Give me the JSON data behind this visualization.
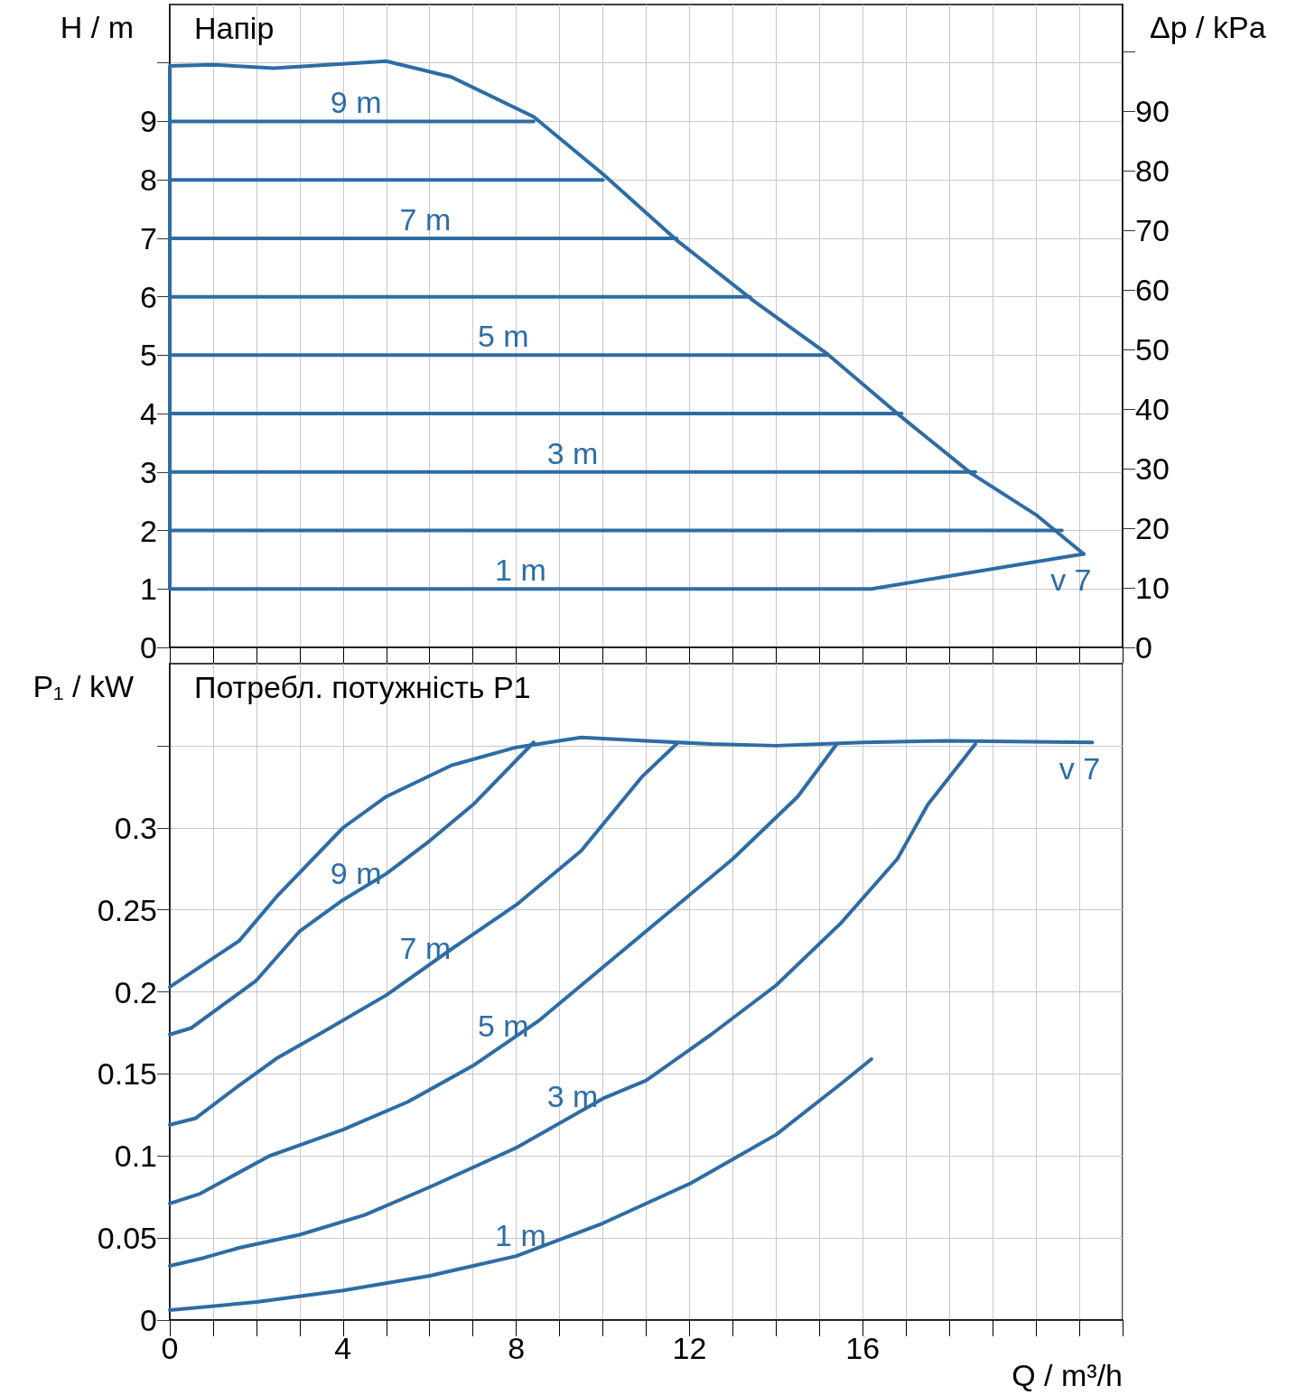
{
  "chart_data": [
    {
      "type": "line",
      "title": "Напір",
      "ylabel": "H / m",
      "y2label": "Δp / kPa",
      "xlim": [
        0,
        22
      ],
      "xticks": [
        0,
        {
          "value": 1,
          "label": null
        },
        {
          "value": 2,
          "label": null
        },
        {
          "value": 3,
          "label": null
        },
        4,
        {
          "value": 5,
          "label": null
        },
        {
          "value": 6,
          "label": null
        },
        {
          "value": 7,
          "label": null
        },
        8,
        {
          "value": 9,
          "label": null
        },
        {
          "value": 10,
          "label": null
        },
        {
          "value": 11,
          "label": null
        },
        12,
        {
          "value": 13,
          "label": null
        },
        {
          "value": 14,
          "label": null
        },
        {
          "value": 15,
          "label": null
        },
        16,
        {
          "value": 17,
          "label": null
        },
        {
          "value": 18,
          "label": null
        },
        {
          "value": 19,
          "label": null
        },
        {
          "value": 20,
          "label": null
        },
        {
          "value": 21,
          "label": null
        },
        {
          "value": 22,
          "label": null
        }
      ],
      "ylim": [
        0,
        11
      ],
      "yticks": [
        0,
        1,
        2,
        3,
        4,
        5,
        6,
        7,
        8,
        9,
        {
          "value": 10,
          "label": null
        }
      ],
      "y2lim": [
        0,
        107.9
      ],
      "y2ticks": [
        0,
        10,
        20,
        30,
        40,
        50,
        60,
        70,
        80,
        90,
        {
          "value": 100,
          "label": null
        }
      ],
      "tick_labels": "y",
      "grid": true,
      "legend": false,
      "series": [
        {
          "name": "v 7",
          "color": "#2e6ca4",
          "x": [
            0,
            0,
            1,
            2.4,
            5,
            6.5,
            8.4,
            10,
            11.7,
            13.5,
            15.2,
            16.8,
            18.5,
            20,
            21.1
          ],
          "values": [
            1,
            9.95,
            9.97,
            9.91,
            10.03,
            9.76,
            9.08,
            8.1,
            6.97,
            5.92,
            5.01,
            4.0,
            2.98,
            2.27,
            1.6
          ]
        },
        {
          "color": "#2e6ca4",
          "x": [
            0,
            16.2,
            21.1
          ],
          "values": [
            1,
            1,
            1.6
          ]
        },
        {
          "color": "#2e6ca4",
          "x": [
            0,
            8.4
          ],
          "values": [
            9,
            9
          ]
        },
        {
          "color": "#2e6ca4",
          "x": [
            0,
            10
          ],
          "values": [
            8,
            8
          ]
        },
        {
          "color": "#2e6ca4",
          "x": [
            0,
            11.7
          ],
          "values": [
            7,
            7
          ]
        },
        {
          "color": "#2e6ca4",
          "x": [
            0,
            13.4
          ],
          "values": [
            6,
            6
          ]
        },
        {
          "color": "#2e6ca4",
          "x": [
            0,
            15.2
          ],
          "values": [
            5,
            5
          ]
        },
        {
          "color": "#2e6ca4",
          "x": [
            0,
            16.9
          ],
          "values": [
            4,
            4
          ]
        },
        {
          "color": "#2e6ca4",
          "x": [
            0,
            18.6
          ],
          "values": [
            3,
            3
          ]
        },
        {
          "color": "#2e6ca4",
          "x": [
            0,
            20.6
          ],
          "values": [
            2,
            2
          ]
        }
      ],
      "annotations": [
        {
          "text": "9 m",
          "x": 4.3,
          "y": 9
        },
        {
          "text": "7 m",
          "x": 5.9,
          "y": 7
        },
        {
          "text": "5 m",
          "x": 7.7,
          "y": 5
        },
        {
          "text": "3 m",
          "x": 9.3,
          "y": 3
        },
        {
          "text": "1 m",
          "x": 8.1,
          "y": 1
        }
      ]
    },
    {
      "type": "line",
      "title": "Потребл. потужність P1",
      "ylabel": "P₁ / kW",
      "xlabel": "Q / m³/h",
      "xlim": [
        0,
        22
      ],
      "xticks": [
        0,
        {
          "value": 1,
          "label": null
        },
        {
          "value": 2,
          "label": null
        },
        {
          "value": 3,
          "label": null
        },
        4,
        {
          "value": 5,
          "label": null
        },
        {
          "value": 6,
          "label": null
        },
        {
          "value": 7,
          "label": null
        },
        8,
        {
          "value": 9,
          "label": null
        },
        {
          "value": 10,
          "label": null
        },
        {
          "value": 11,
          "label": null
        },
        12,
        {
          "value": 13,
          "label": null
        },
        {
          "value": 14,
          "label": null
        },
        {
          "value": 15,
          "label": null
        },
        16,
        {
          "value": 17,
          "label": null
        },
        {
          "value": 18,
          "label": null
        },
        {
          "value": 19,
          "label": null
        },
        {
          "value": 20,
          "label": null
        },
        {
          "value": 21,
          "label": null
        },
        {
          "value": 22,
          "label": null
        }
      ],
      "ylim": [
        0,
        0.4
      ],
      "yticks": [
        0,
        0.05,
        0.1,
        0.15,
        0.2,
        0.25,
        0.3,
        {
          "value": 0.35,
          "label": null
        }
      ],
      "grid": true,
      "legend": false,
      "series": [
        {
          "name": "v 7",
          "color": "#2e6ca4",
          "x": [
            0,
            1.6,
            2.5,
            4,
            5,
            6.5,
            8,
            9.5,
            11,
            12.5,
            14,
            16,
            18,
            21.3
          ],
          "values": [
            0.203,
            0.231,
            0.259,
            0.3,
            0.319,
            0.338,
            0.349,
            0.355,
            0.353,
            0.351,
            0.35,
            0.352,
            0.353,
            0.352
          ]
        },
        {
          "color": "#2e6ca4",
          "x": [
            0,
            0.5,
            2,
            3,
            4,
            5,
            6,
            7,
            8.4
          ],
          "values": [
            0.174,
            0.178,
            0.207,
            0.237,
            0.256,
            0.272,
            0.292,
            0.314,
            0.352
          ]
        },
        {
          "color": "#2e6ca4",
          "x": [
            0,
            0.6,
            1.5,
            2.5,
            3.5,
            5,
            6.5,
            8,
            9.5,
            10.9,
            11.7
          ],
          "values": [
            0.119,
            0.123,
            0.141,
            0.16,
            0.175,
            0.198,
            0.226,
            0.253,
            0.286,
            0.331,
            0.351
          ]
        },
        {
          "color": "#2e6ca4",
          "x": [
            0,
            0.7,
            2.3,
            4,
            5.5,
            7,
            8.5,
            10,
            11.5,
            13,
            14.5,
            15.4
          ],
          "values": [
            0.071,
            0.077,
            0.1,
            0.116,
            0.133,
            0.155,
            0.182,
            0.215,
            0.248,
            0.281,
            0.319,
            0.351
          ]
        },
        {
          "color": "#2e6ca4",
          "x": [
            0,
            0.8,
            1.6,
            3,
            4.5,
            6,
            8,
            10,
            11,
            12.5,
            14,
            15.5,
            16.8,
            17.5,
            18.6
          ],
          "values": [
            0.033,
            0.038,
            0.044,
            0.052,
            0.064,
            0.081,
            0.105,
            0.135,
            0.146,
            0.174,
            0.204,
            0.242,
            0.281,
            0.314,
            0.351
          ]
        },
        {
          "color": "#2e6ca4",
          "x": [
            0,
            2,
            4,
            6,
            8,
            10,
            12,
            14,
            15.5,
            16.2
          ],
          "values": [
            0.006,
            0.011,
            0.018,
            0.027,
            0.039,
            0.059,
            0.083,
            0.113,
            0.144,
            0.159
          ]
        }
      ],
      "annotations": [
        {
          "text": "9 m",
          "x": 4.3,
          "y": 0.261
        },
        {
          "text": "7 m",
          "x": 5.9,
          "y": 0.215
        },
        {
          "text": "5 m",
          "x": 7.7,
          "y": 0.168
        },
        {
          "text": "3 m",
          "x": 9.3,
          "y": 0.125
        },
        {
          "text": "1 m",
          "x": 8.1,
          "y": 0.04
        }
      ]
    }
  ]
}
